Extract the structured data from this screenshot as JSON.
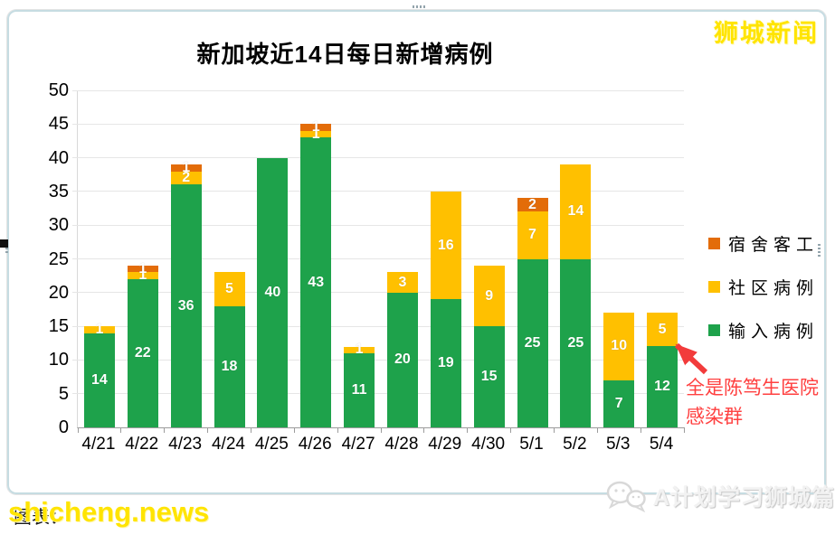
{
  "chart_data": {
    "type": "bar",
    "stacked": true,
    "title": "新加坡近14日每日新增病例",
    "categories": [
      "4/21",
      "4/22",
      "4/23",
      "4/24",
      "4/25",
      "4/26",
      "4/27",
      "4/28",
      "4/29",
      "4/30",
      "5/1",
      "5/2",
      "5/3",
      "5/4"
    ],
    "series": [
      {
        "name": "输入病例",
        "color": "#1ea24b",
        "values": [
          14,
          22,
          36,
          18,
          40,
          43,
          11,
          20,
          19,
          15,
          25,
          25,
          7,
          12
        ]
      },
      {
        "name": "社区病例",
        "color": "#ffc000",
        "values": [
          1,
          1,
          2,
          5,
          0,
          1,
          1,
          3,
          16,
          9,
          7,
          14,
          10,
          5
        ]
      },
      {
        "name": "宿舍客工",
        "color": "#e36c09",
        "values": [
          0,
          1,
          1,
          0,
          0,
          1,
          0,
          0,
          0,
          0,
          2,
          0,
          0,
          0
        ]
      }
    ],
    "totals": [
      15,
      24,
      39,
      23,
      40,
      45,
      12,
      23,
      35,
      24,
      34,
      39,
      17,
      17
    ],
    "ylim": [
      0,
      50
    ],
    "ytick_step": 5,
    "yticks": [
      0,
      5,
      10,
      15,
      20,
      25,
      30,
      35,
      40,
      45,
      50
    ],
    "grid": true,
    "bar_label_color": "#ffffff",
    "legend_position": "right",
    "legend": [
      {
        "label": "宿舍客工",
        "color": "#e36c09"
      },
      {
        "label": "社区病例",
        "color": "#ffc000"
      },
      {
        "label": "输入病例",
        "color": "#1ea24b"
      }
    ]
  },
  "annotation": {
    "line1": "全是陈笃生医院",
    "line2": "感染群",
    "color": "#ff4040",
    "target": "5/4 社区病例 segment"
  },
  "watermarks": {
    "top_right": "狮城新闻",
    "bottom_left": "shicheng.news",
    "caption_behind": "图表：",
    "bottom_right_logo": "A计划学习狮城篇"
  },
  "colors": {
    "imported_green": "#1ea24b",
    "community_yellow": "#ffc000",
    "dormitory_orange": "#e36c09",
    "annotation_red": "#ff4040",
    "watermark_yellow": "#ffe400",
    "frame_blue": "#c6dce2"
  }
}
